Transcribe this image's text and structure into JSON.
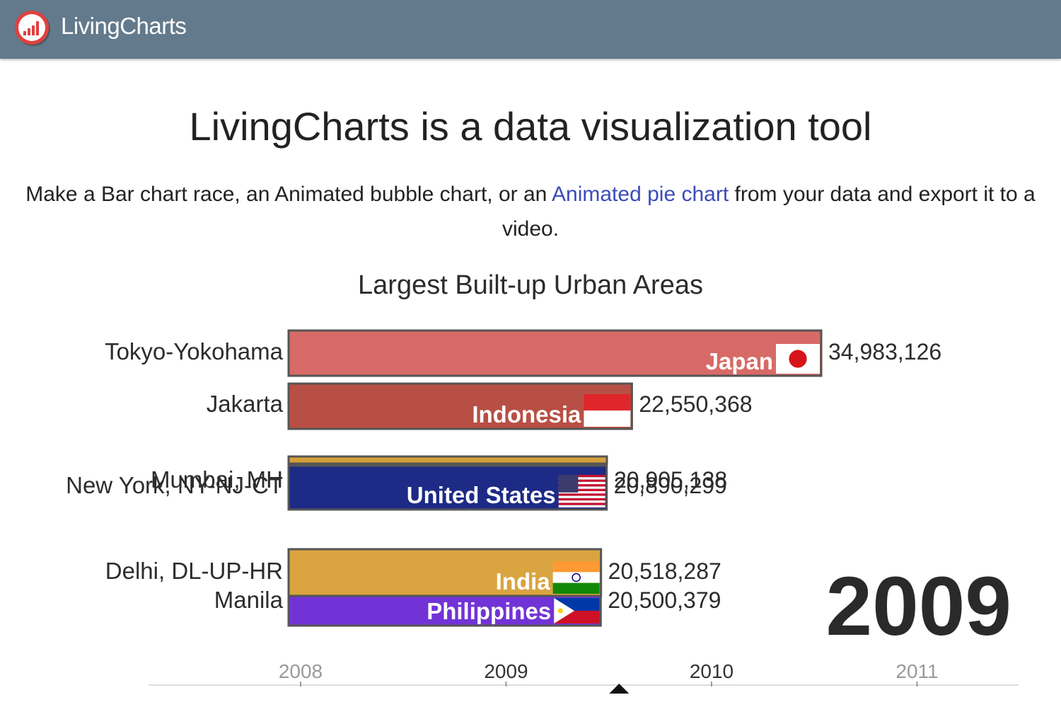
{
  "nav": {
    "brand": "LivingCharts"
  },
  "hero": {
    "headline": "LivingCharts is a data visualization tool",
    "text_before": "Make a Bar chart race, an Animated bubble chart, or an ",
    "link": "Animated pie chart",
    "text_after": " from your data and export it to a video."
  },
  "chart_data": {
    "type": "bar",
    "title": "Largest Built-up Urban Areas",
    "current_year": "2009",
    "bars": [
      {
        "label": "Tokyo-Yokohama",
        "country": "Japan",
        "value": 34983126,
        "display": "34,983,126",
        "color": "#d76a66",
        "flag": "jp"
      },
      {
        "label": "Jakarta",
        "country": "Indonesia",
        "value": 22550368,
        "display": "22,550,368",
        "color": "#b84f44",
        "flag": "id"
      },
      {
        "label": "Mumbai, MH",
        "country": "",
        "value": 20905138,
        "display": "20,905,138",
        "color": "#d5a03a",
        "flag": ""
      },
      {
        "label": "New York, NY-NJ-CT",
        "country": "United States",
        "value": 20890299,
        "display": "20,890,299",
        "color": "#1d2a86",
        "flag": "us"
      },
      {
        "label": "Delhi, DL-UP-HR",
        "country": "India",
        "value": 20518287,
        "display": "20,518,287",
        "color": "#d9a43f",
        "flag": "in"
      },
      {
        "label": "Manila",
        "country": "Philippines",
        "value": 20500379,
        "display": "20,500,379",
        "color": "#7233d6",
        "flag": "ph"
      }
    ],
    "timeline": {
      "ticks": [
        "2008",
        "2009",
        "2010",
        "2011"
      ],
      "position": 2009.55
    },
    "colors": {
      "bar_border": "#555555",
      "timeline_active": "#333333",
      "timeline_inactive": "#9a9a9a"
    }
  }
}
